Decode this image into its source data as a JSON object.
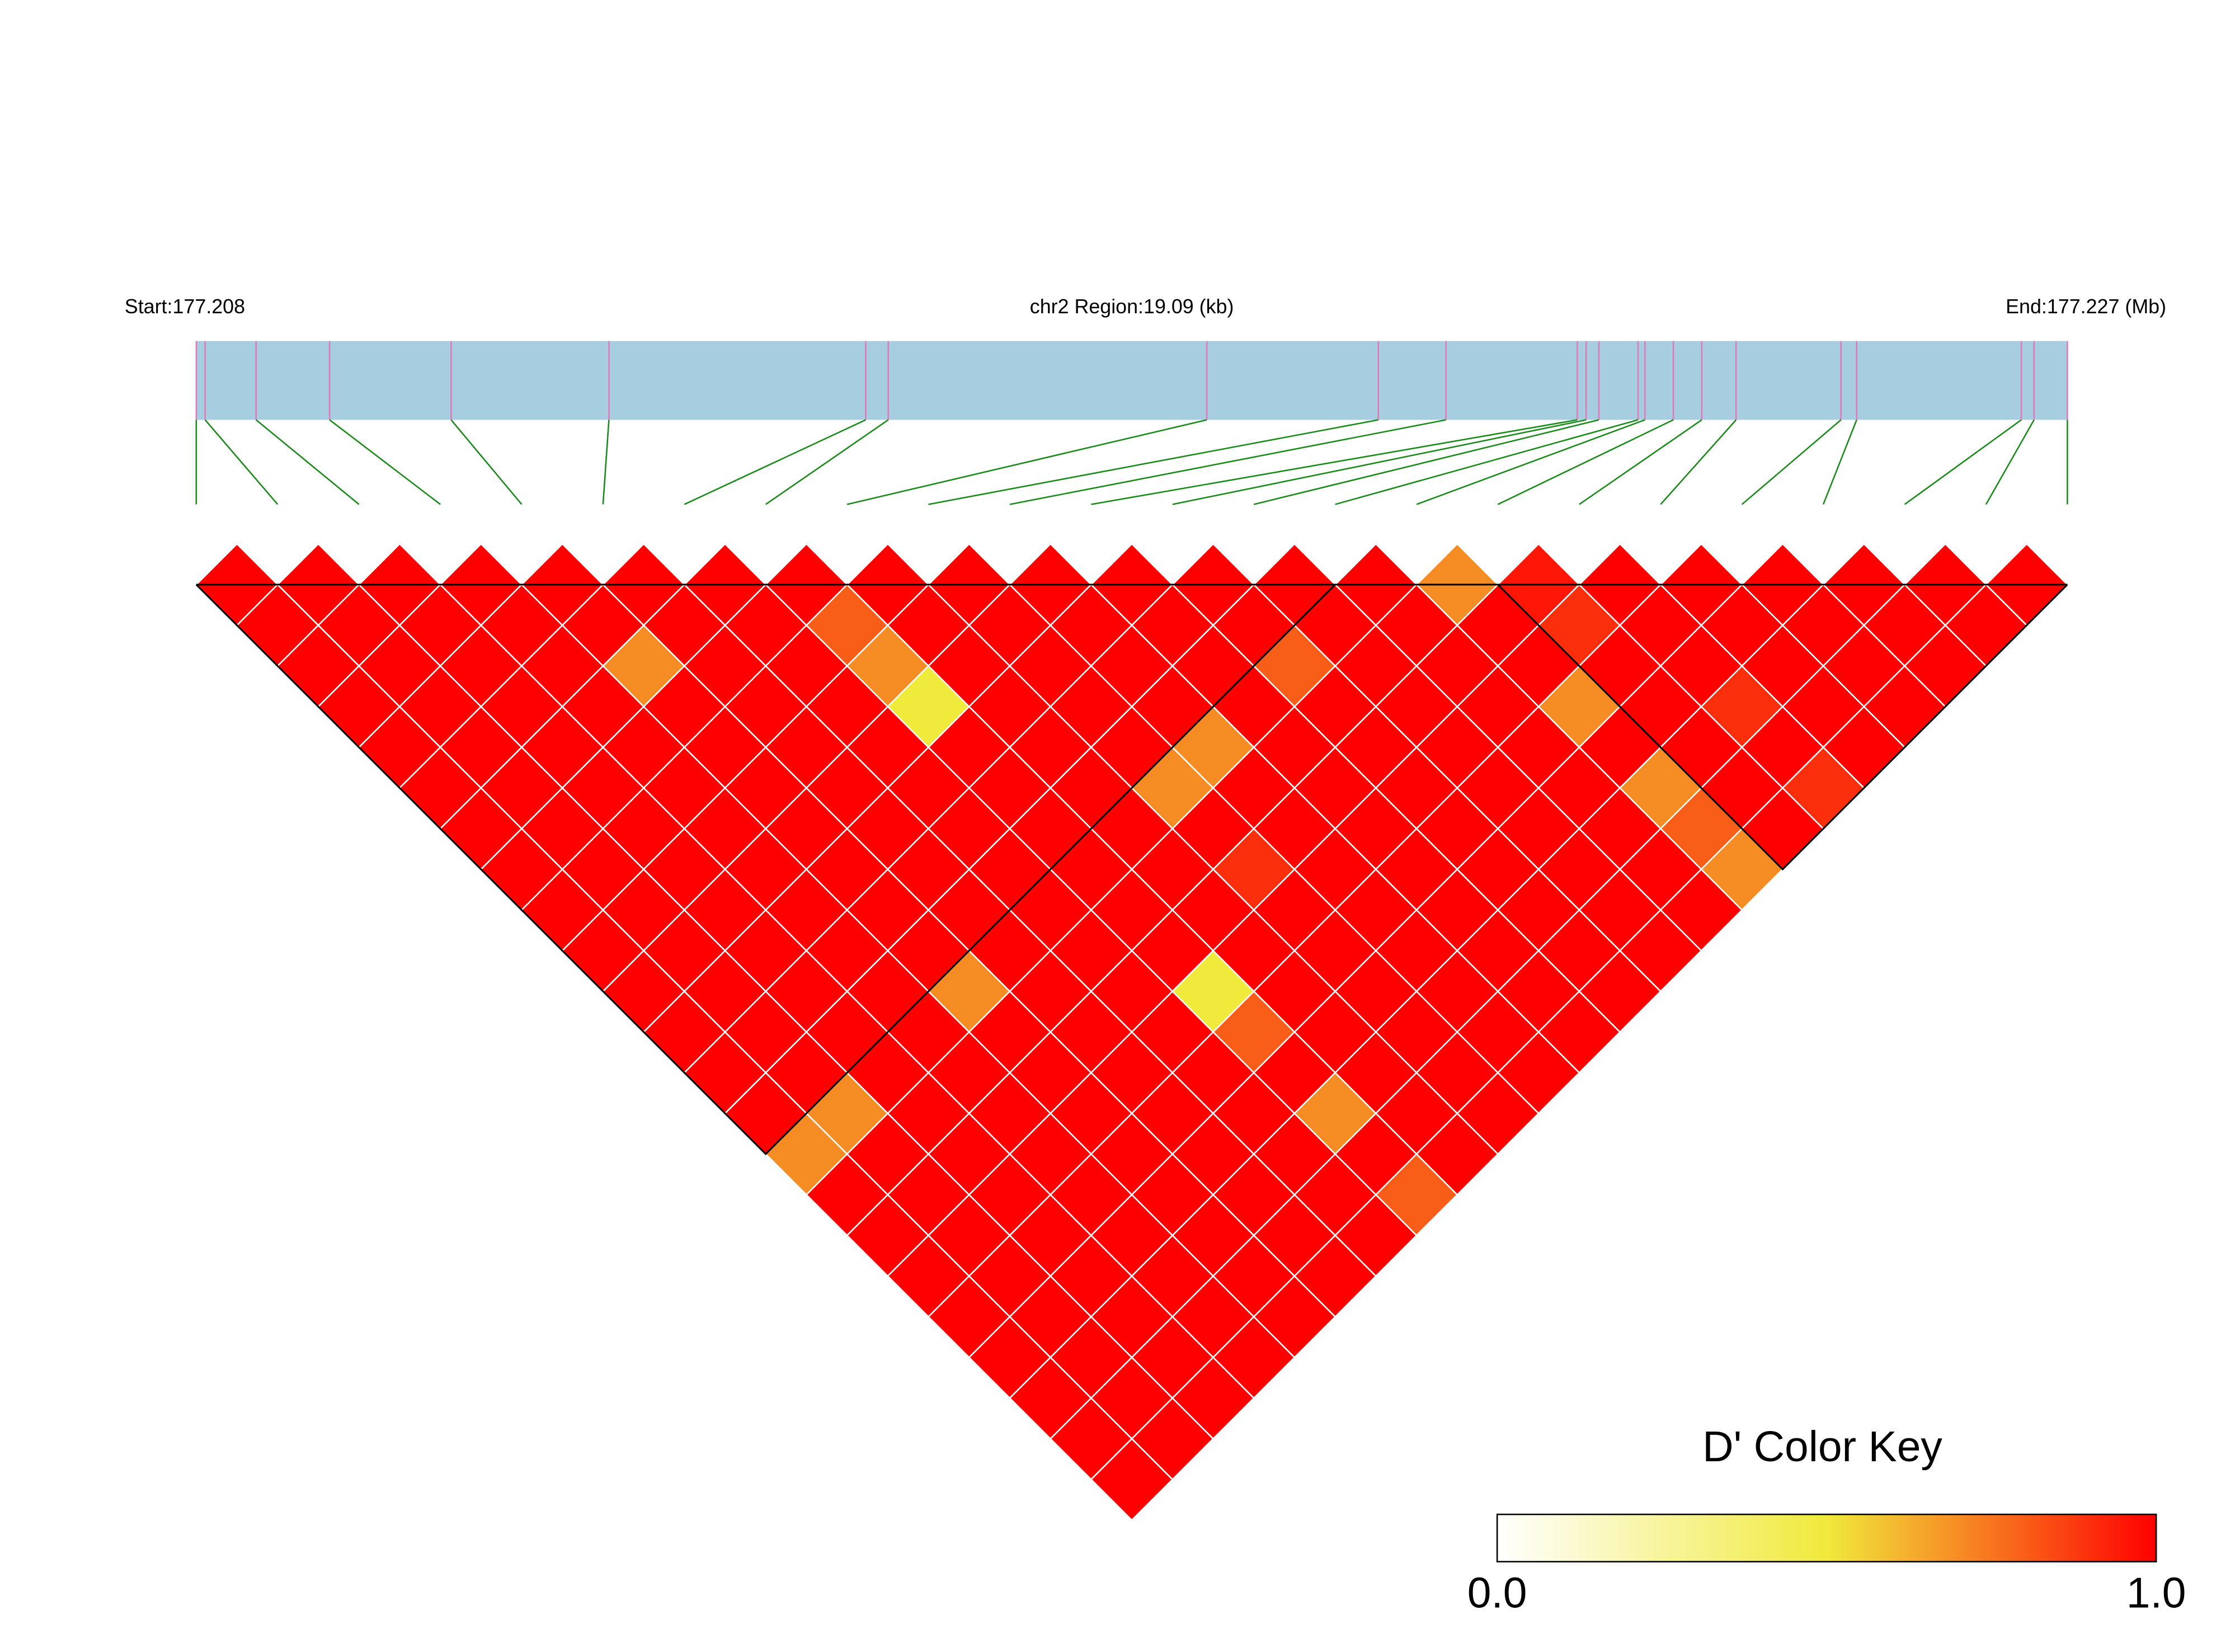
{
  "chart_data": {
    "type": "ld_heatmap",
    "start_label": "Start:177.208",
    "region_label": "chr2 Region:19.09 (kb)",
    "end_label": "End:177.227 (Mb)",
    "xlim": [
      0,
      19.09
    ],
    "positions": [
      0,
      0.09,
      0.61,
      1.36,
      2.6,
      4.21,
      6.83,
      7.06,
      10.31,
      12.06,
      12.75,
      14.09,
      14.18,
      14.31,
      14.71,
      14.78,
      15.07,
      15.36,
      15.71,
      16.78,
      16.94,
      18.62,
      18.75,
      19.09
    ],
    "dprime": [
      [
        1,
        1,
        1,
        1,
        1,
        1,
        1,
        1,
        1,
        1,
        1,
        1,
        1,
        1,
        0.7,
        1,
        1,
        1,
        1,
        1,
        1,
        1,
        1
      ],
      [
        1,
        1,
        1,
        1,
        1,
        1,
        1,
        1,
        1,
        1,
        1,
        1,
        1,
        0.7,
        1,
        1,
        1,
        1,
        1,
        1,
        1,
        1
      ],
      [
        1,
        1,
        1,
        1,
        1,
        1,
        1,
        1,
        1,
        1,
        1,
        1,
        1,
        1,
        1,
        1,
        1,
        1,
        1,
        1,
        1
      ],
      [
        1,
        1,
        1,
        1,
        1,
        1,
        1,
        1,
        1,
        1,
        1,
        1,
        1,
        1,
        1,
        1,
        1,
        1,
        1,
        1
      ],
      [
        1,
        1,
        0.7,
        1,
        1,
        1,
        1,
        1,
        1,
        1,
        0.7,
        1,
        1,
        1,
        1,
        1,
        1,
        1,
        1
      ],
      [
        1,
        1,
        1,
        1,
        1,
        1,
        1,
        1,
        1,
        1,
        1,
        1,
        1,
        1,
        1,
        1,
        1,
        1
      ],
      [
        1,
        1,
        1,
        1,
        1,
        1,
        1,
        1,
        1,
        1,
        1,
        1,
        1,
        1,
        1,
        1,
        1
      ],
      [
        1,
        0.8,
        0.7,
        0.5,
        1,
        1,
        1,
        1,
        1,
        1,
        0.5,
        0.8,
        1,
        0.7,
        1,
        0.8
      ],
      [
        1,
        1,
        1,
        1,
        1,
        1,
        1,
        1,
        1,
        1,
        1,
        1,
        1,
        1,
        1
      ],
      [
        1,
        1,
        1,
        1,
        1,
        0.7,
        1,
        0.9,
        1,
        1,
        1,
        1,
        1,
        1
      ],
      [
        1,
        1,
        1,
        1,
        0.7,
        1,
        1,
        1,
        1,
        1,
        1,
        1,
        1
      ],
      [
        1,
        1,
        1,
        1,
        1,
        1,
        1,
        1,
        1,
        1,
        1,
        1
      ],
      [
        1,
        1,
        0.8,
        1,
        1,
        1,
        1,
        1,
        1,
        1,
        1
      ],
      [
        1,
        1,
        1,
        1,
        1,
        1,
        1,
        1,
        1,
        1
      ],
      [
        1,
        1,
        1,
        1,
        1,
        1,
        1,
        1,
        1
      ],
      [
        0.7,
        1,
        1,
        0.7,
        1,
        0.7,
        0.8,
        0.7
      ],
      [
        0.95,
        0.9,
        1,
        1,
        1,
        1,
        1
      ],
      [
        1,
        1,
        1,
        0.9,
        1,
        0.9
      ],
      [
        1,
        1,
        1,
        1,
        1
      ],
      [
        1,
        1,
        1,
        1
      ],
      [
        1,
        1,
        1
      ],
      [
        1,
        1
      ],
      [
        1
      ]
    ],
    "blocks": [
      [
        0,
        14
      ],
      [
        16,
        23
      ]
    ],
    "bar_color": "#a6cde0",
    "snp_line_color": "#e07ab8",
    "connector_color": "#1a8a1a",
    "color_key": {
      "title": "D' Color Key",
      "colors": [
        "#ffffff",
        "#f0ea3c",
        "#ff0000"
      ],
      "lim": [
        0,
        1
      ],
      "ticks": [
        {
          "value": 0,
          "label": "0.0"
        },
        {
          "value": 1,
          "label": "1.0"
        }
      ]
    }
  }
}
